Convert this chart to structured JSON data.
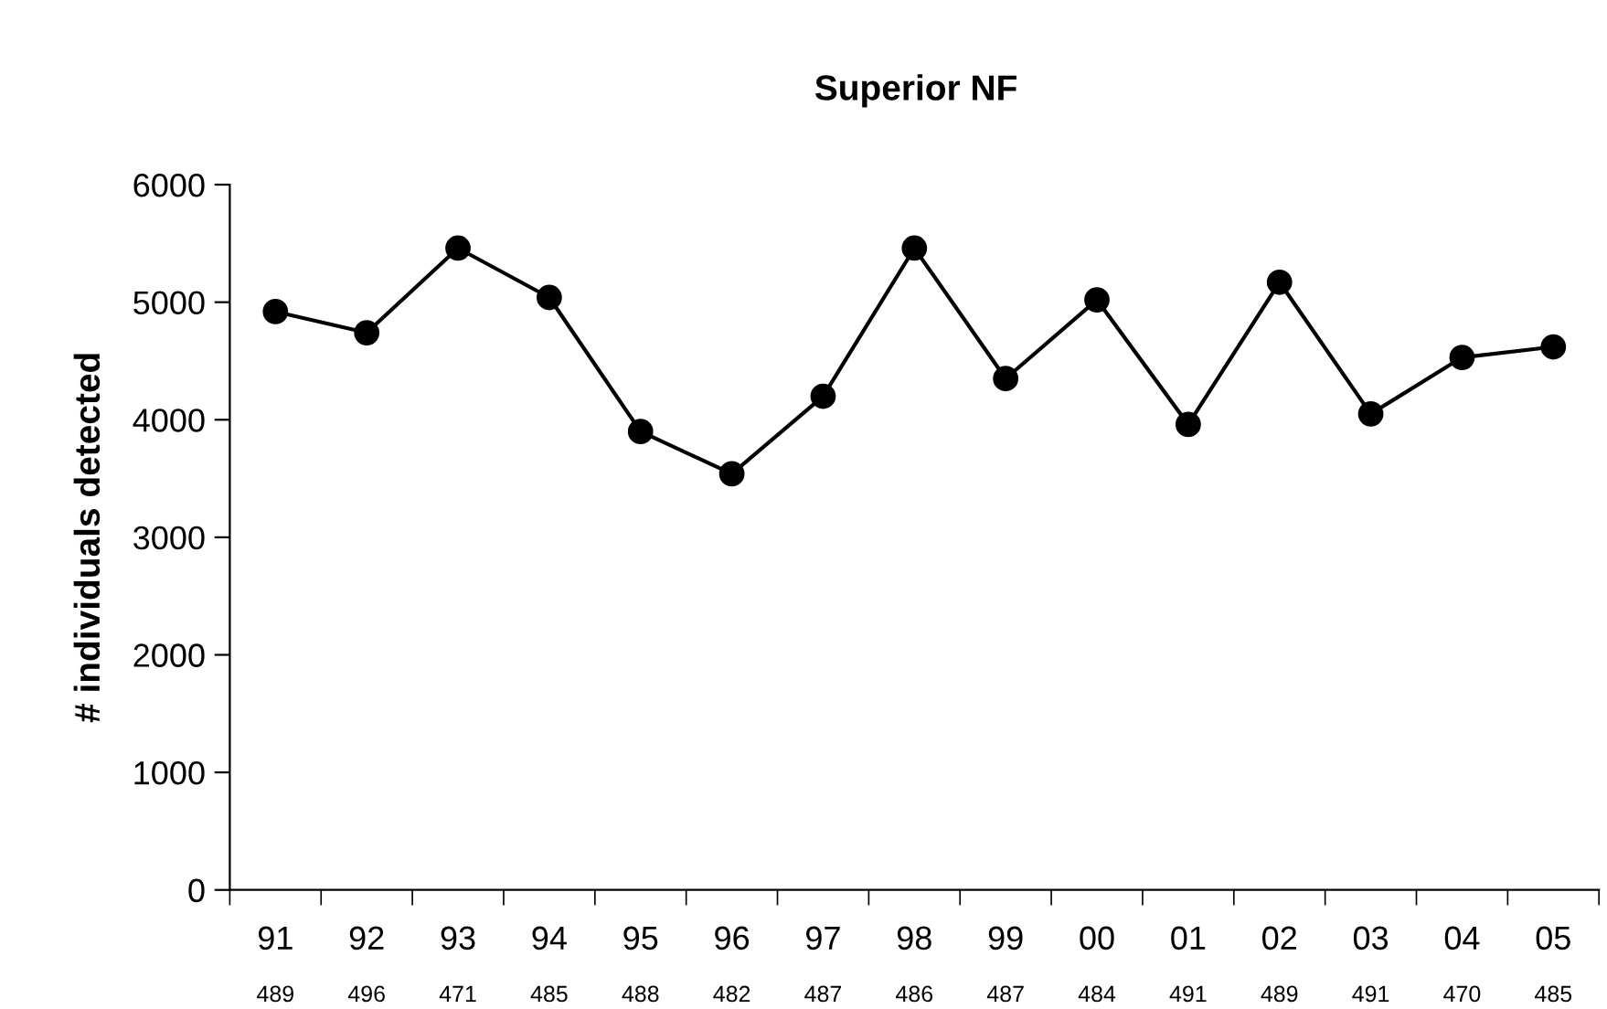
{
  "chart_data": {
    "type": "line",
    "title": "Superior NF",
    "ylabel": "# individuals detected",
    "categories": [
      "91\n489",
      "92\n496",
      "93\n471",
      "94\n485",
      "95\n488",
      "96\n482",
      "97\n487",
      "98\n486",
      "99\n487",
      "00\n484",
      "01\n491",
      "02\n489",
      "03\n491",
      "04\n470",
      "05\n485"
    ],
    "series": [
      {
        "color": "#000000",
        "values": [
          4920,
          4740,
          5460,
          5040,
          3900,
          3540,
          4200,
          5460,
          4350,
          5020,
          3960,
          5170,
          4050,
          4530,
          4620
        ]
      }
    ],
    "ylim": [
      0,
      6000
    ],
    "yticks": [
      0,
      1000,
      2000,
      3000,
      4000,
      5000,
      6000
    ],
    "marker": "circle",
    "line_style": "solid",
    "grid": false,
    "legend": false
  }
}
